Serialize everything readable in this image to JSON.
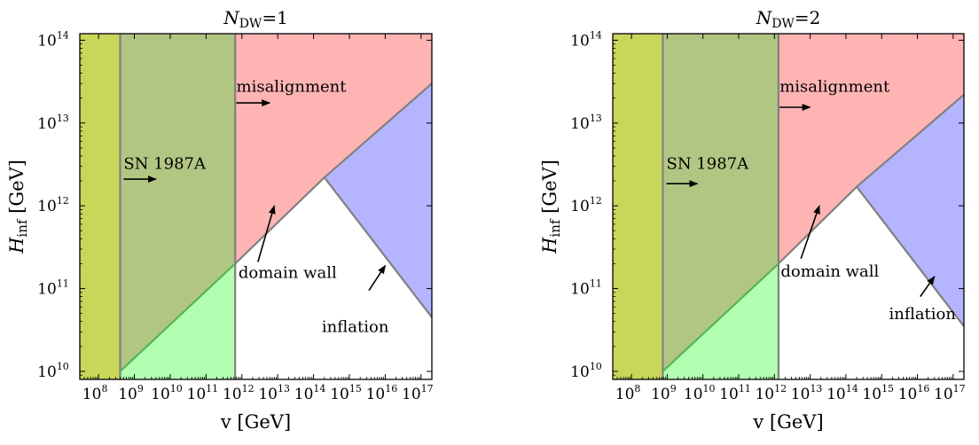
{
  "figure": {
    "colors": {
      "lime": "#c8d75a",
      "olive": "#b2c684",
      "light_green": "#b2ffb2",
      "pink": "#ffb4b4",
      "blue": "#b4b4ff",
      "boundary_gray": "#808080",
      "boundary_green": "#55b455"
    }
  },
  "chart_data": [
    {
      "type": "area",
      "title": "N_DW=1",
      "title_main": "N",
      "title_sub": "DW",
      "title_rest": "=1",
      "xlabel": "v [GeV]",
      "ylabel_main": "H",
      "ylabel_sub": "inf",
      "ylabel_rest": " [GeV]",
      "x_scale": "log",
      "y_scale": "log",
      "xlim": [
        30000000.0,
        2e+17
      ],
      "ylim": [
        8000000000.0,
        120000000000000.0
      ],
      "x_ticks": [
        100000000.0,
        1000000000.0,
        10000000000.0,
        100000000000.0,
        1000000000000.0,
        10000000000000.0,
        100000000000000.0,
        1000000000000000.0,
        1e+16,
        1e+17
      ],
      "x_tick_labels": [
        [
          "10",
          "8"
        ],
        [
          "10",
          "9"
        ],
        [
          "10",
          "10"
        ],
        [
          "10",
          "11"
        ],
        [
          "10",
          "12"
        ],
        [
          "10",
          "13"
        ],
        [
          "10",
          "14"
        ],
        [
          "10",
          "15"
        ],
        [
          "10",
          "16"
        ],
        [
          "10",
          "17"
        ]
      ],
      "y_ticks": [
        10000000000.0,
        100000000000.0,
        1000000000000.0,
        10000000000000.0,
        100000000000000.0
      ],
      "y_tick_labels": [
        [
          "10",
          "10"
        ],
        [
          "10",
          "11"
        ],
        [
          "10",
          "12"
        ],
        [
          "10",
          "13"
        ],
        [
          "10",
          "14"
        ]
      ],
      "grid": false,
      "legend": "none",
      "regions": [
        {
          "color": "lime",
          "points": [
            [
              30000000.0,
              8000000000.0
            ],
            [
              400000000.0,
              8000000000.0
            ],
            [
              400000000.0,
              120000000000000.0
            ],
            [
              30000000.0,
              120000000000000.0
            ]
          ]
        },
        {
          "color": "olive",
          "points": [
            [
              400000000.0,
              10000000000.0
            ],
            [
              650000000000.0,
              200000000000.0
            ],
            [
              650000000000.0,
              120000000000000.0
            ],
            [
              400000000.0,
              120000000000000.0
            ]
          ]
        },
        {
          "color": "light_green",
          "points": [
            [
              400000000.0,
              8000000000.0
            ],
            [
              650000000000.0,
              8000000000.0
            ],
            [
              650000000000.0,
              200000000000.0
            ],
            [
              400000000.0,
              10000000000.0
            ]
          ]
        },
        {
          "color": "pink",
          "points": [
            [
              650000000000.0,
              200000000000.0
            ],
            [
              200000000000000.0,
              2200000000000.0
            ],
            [
              2e+17,
              30000000000000.0
            ],
            [
              2e+17,
              120000000000000.0
            ],
            [
              650000000000.0,
              120000000000000.0
            ]
          ]
        },
        {
          "color": "blue",
          "points": [
            [
              200000000000000.0,
              2200000000000.0
            ],
            [
              2e+17,
              30000000000000.0
            ],
            [
              2e+17,
              45000000000.0
            ]
          ]
        }
      ],
      "boundaries": [
        {
          "color": "boundary_gray",
          "points": [
            [
              400000000.0,
              8000000000.0
            ],
            [
              400000000.0,
              120000000000000.0
            ]
          ]
        },
        {
          "color": "boundary_gray",
          "points": [
            [
              650000000000.0,
              8000000000.0
            ],
            [
              650000000000.0,
              120000000000000.0
            ]
          ]
        },
        {
          "color": "boundary_green",
          "points": [
            [
              400000000.0,
              10000000000.0
            ],
            [
              650000000000.0,
              200000000000.0
            ]
          ]
        },
        {
          "color": "boundary_gray",
          "points": [
            [
              650000000000.0,
              200000000000.0
            ],
            [
              200000000000000.0,
              2200000000000.0
            ],
            [
              2e+17,
              30000000000000.0
            ]
          ]
        },
        {
          "color": "boundary_gray",
          "points": [
            [
              200000000000000.0,
              2200000000000.0
            ],
            [
              2e+17,
              45000000000.0
            ]
          ]
        }
      ],
      "annotations": [
        {
          "text": "misalignment",
          "at": [
            700000000000.0,
            24000000000000.0
          ],
          "arrow_from": [
            700000000000.0,
            17500000000000.0
          ],
          "arrow_to": [
            6000000000000.0,
            17500000000000.0
          ]
        },
        {
          "text": "SN 1987A",
          "at": [
            500000000.0,
            2800000000000.0
          ],
          "arrow_from": [
            500000000.0,
            2100000000000.0
          ],
          "arrow_to": [
            4000000000.0,
            2100000000000.0
          ]
        },
        {
          "text": "domain wall",
          "at": [
            800000000000.0,
            135000000000.0
          ],
          "arrow_from": [
            2800000000000.0,
            210000000000.0
          ],
          "arrow_to": [
            8000000000000.0,
            1000000000000.0
          ]
        },
        {
          "text": "inflation",
          "at": [
            170000000000000.0,
            30000000000.0
          ],
          "arrow_from": [
            3500000000000000.0,
            95000000000.0
          ],
          "arrow_to": [
            1e+16,
            190000000000.0
          ]
        }
      ]
    },
    {
      "type": "area",
      "title": "N_DW=2",
      "title_main": "N",
      "title_sub": "DW",
      "title_rest": "=2",
      "xlabel": "v [GeV]",
      "ylabel_main": "H",
      "ylabel_sub": "inf",
      "ylabel_rest": " [GeV]",
      "x_scale": "log",
      "y_scale": "log",
      "xlim": [
        30000000.0,
        2e+17
      ],
      "ylim": [
        8000000000.0,
        120000000000000.0
      ],
      "x_ticks": [
        100000000.0,
        1000000000.0,
        10000000000.0,
        100000000000.0,
        1000000000000.0,
        10000000000000.0,
        100000000000000.0,
        1000000000000000.0,
        1e+16,
        1e+17
      ],
      "x_tick_labels": [
        [
          "10",
          "8"
        ],
        [
          "10",
          "9"
        ],
        [
          "10",
          "10"
        ],
        [
          "10",
          "11"
        ],
        [
          "10",
          "12"
        ],
        [
          "10",
          "13"
        ],
        [
          "10",
          "14"
        ],
        [
          "10",
          "15"
        ],
        [
          "10",
          "16"
        ],
        [
          "10",
          "17"
        ]
      ],
      "y_ticks": [
        10000000000.0,
        100000000000.0,
        1000000000000.0,
        10000000000000.0,
        100000000000000.0
      ],
      "y_tick_labels": [
        [
          "10",
          "10"
        ],
        [
          "10",
          "11"
        ],
        [
          "10",
          "12"
        ],
        [
          "10",
          "13"
        ],
        [
          "10",
          "14"
        ]
      ],
      "grid": false,
      "legend": "none",
      "regions": [
        {
          "color": "lime",
          "points": [
            [
              30000000.0,
              8000000000.0
            ],
            [
              750000000.0,
              8000000000.0
            ],
            [
              750000000.0,
              120000000000000.0
            ],
            [
              30000000.0,
              120000000000000.0
            ]
          ]
        },
        {
          "color": "olive",
          "points": [
            [
              750000000.0,
              10000000000.0
            ],
            [
              1300000000000.0,
              200000000000.0
            ],
            [
              1300000000000.0,
              120000000000000.0
            ],
            [
              750000000.0,
              120000000000000.0
            ]
          ]
        },
        {
          "color": "light_green",
          "points": [
            [
              750000000.0,
              8000000000.0
            ],
            [
              1300000000000.0,
              8000000000.0
            ],
            [
              1300000000000.0,
              200000000000.0
            ],
            [
              750000000.0,
              10000000000.0
            ]
          ]
        },
        {
          "color": "pink",
          "points": [
            [
              1300000000000.0,
              200000000000.0
            ],
            [
              200000000000000.0,
              1700000000000.0
            ],
            [
              2e+17,
              22000000000000.0
            ],
            [
              2e+17,
              120000000000000.0
            ],
            [
              1300000000000.0,
              120000000000000.0
            ]
          ]
        },
        {
          "color": "blue",
          "points": [
            [
              200000000000000.0,
              1700000000000.0
            ],
            [
              2e+17,
              22000000000000.0
            ],
            [
              2e+17,
              35000000000.0
            ]
          ]
        }
      ],
      "boundaries": [
        {
          "color": "boundary_gray",
          "points": [
            [
              750000000.0,
              8000000000.0
            ],
            [
              750000000.0,
              120000000000000.0
            ]
          ]
        },
        {
          "color": "boundary_gray",
          "points": [
            [
              1300000000000.0,
              8000000000.0
            ],
            [
              1300000000000.0,
              120000000000000.0
            ]
          ]
        },
        {
          "color": "boundary_green",
          "points": [
            [
              750000000.0,
              10000000000.0
            ],
            [
              1300000000000.0,
              200000000000.0
            ]
          ]
        },
        {
          "color": "boundary_gray",
          "points": [
            [
              1300000000000.0,
              200000000000.0
            ],
            [
              200000000000000.0,
              1700000000000.0
            ],
            [
              2e+17,
              22000000000000.0
            ]
          ]
        },
        {
          "color": "boundary_gray",
          "points": [
            [
              200000000000000.0,
              1700000000000.0
            ],
            [
              2e+17,
              35000000000.0
            ]
          ]
        }
      ],
      "annotations": [
        {
          "text": "misalignment",
          "at": [
            1400000000000.0,
            24000000000000.0
          ],
          "arrow_from": [
            1400000000000.0,
            15500000000000.0
          ],
          "arrow_to": [
            10000000000000.0,
            15500000000000.0
          ]
        },
        {
          "text": "SN 1987A",
          "at": [
            950000000.0,
            2800000000000.0
          ],
          "arrow_from": [
            950000000.0,
            1850000000000.0
          ],
          "arrow_to": [
            7000000000.0,
            1850000000000.0
          ]
        },
        {
          "text": "domain wall",
          "at": [
            1500000000000.0,
            140000000000.0
          ],
          "arrow_from": [
            5500000000000.0,
            230000000000.0
          ],
          "arrow_to": [
            18000000000000.0,
            1000000000000.0
          ]
        },
        {
          "text": "inflation",
          "at": [
            1600000000000000.0,
            43000000000.0
          ],
          "arrow_from": [
            1.2e+16,
            80000000000.0
          ],
          "arrow_to": [
            3e+16,
            140000000000.0
          ]
        }
      ]
    }
  ]
}
